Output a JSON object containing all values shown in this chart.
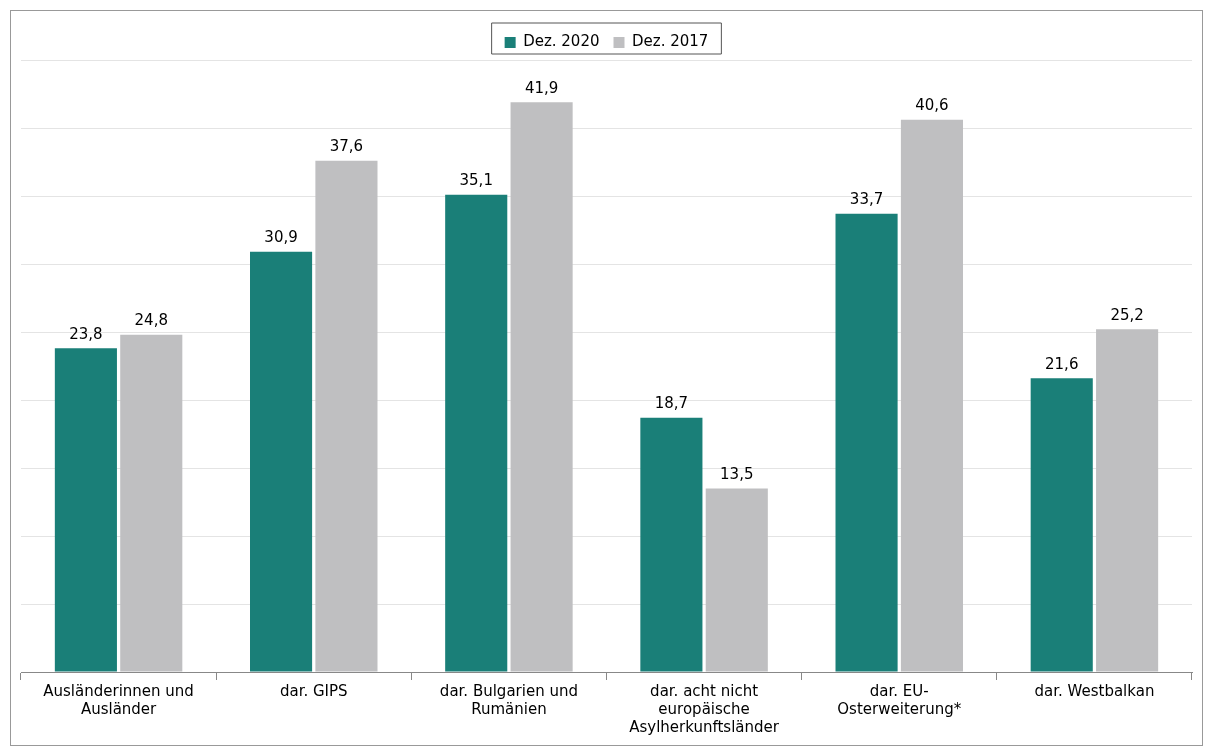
{
  "chart_data": {
    "type": "bar",
    "categories": [
      "Ausländerinnen und Ausländer",
      "dar. GIPS",
      "dar. Bulgarien und Rumänien",
      "dar. acht nicht europäische Asylherkunftsländer",
      "dar. EU-Osterweiterung*",
      "dar. Westbalkan"
    ],
    "series": [
      {
        "name": "Dez. 2020",
        "color": "#1a7f78",
        "values": [
          23.8,
          30.9,
          35.1,
          18.7,
          33.7,
          21.6
        ],
        "value_labels": [
          "23,8",
          "30,9",
          "35,1",
          "18,7",
          "33,7",
          "21,6"
        ]
      },
      {
        "name": "Dez. 2017",
        "color": "#bfbfc1",
        "values": [
          24.8,
          37.6,
          41.9,
          13.5,
          40.6,
          25.2
        ],
        "value_labels": [
          "24,8",
          "37,6",
          "41,9",
          "13,5",
          "40,6",
          "25,2"
        ]
      }
    ],
    "tick_labels": "x",
    "grid": "y",
    "legend": "top"
  }
}
